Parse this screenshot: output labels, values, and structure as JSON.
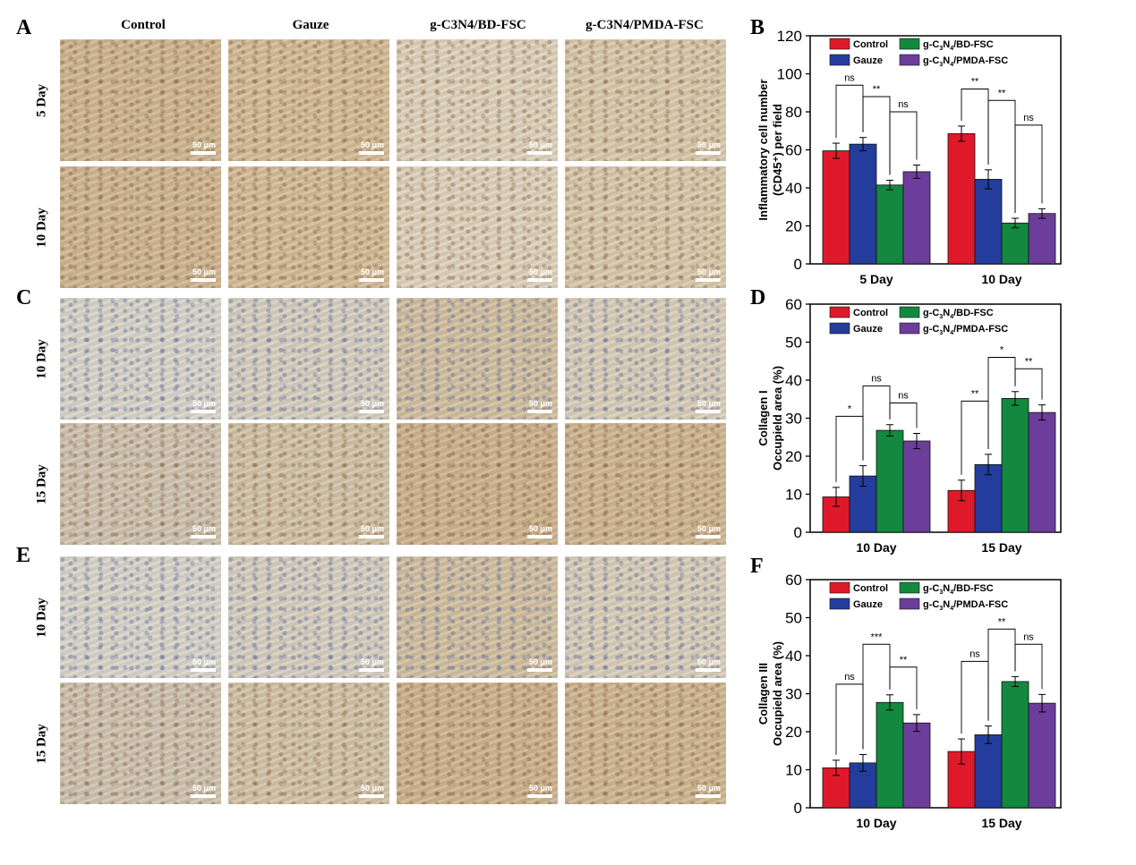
{
  "panel_letters": {
    "A": "A",
    "B": "B",
    "C": "C",
    "D": "D",
    "E": "E",
    "F": "F"
  },
  "columns": [
    "Control",
    "Gauze",
    "g-C3N4/BD-FSC",
    "g-C3N4/PMDA-FSC"
  ],
  "histology_rows": [
    {
      "panel": "A",
      "label": "5 Day",
      "tone": "brown"
    },
    {
      "panel": "A",
      "label": "10 Day",
      "tone": "brown"
    },
    {
      "panel": "C",
      "label": "10 Day",
      "tone": "blue"
    },
    {
      "panel": "C",
      "label": "15 Day",
      "tone": "tan"
    },
    {
      "panel": "E",
      "label": "10 Day",
      "tone": "blue"
    },
    {
      "panel": "E",
      "label": "15 Day",
      "tone": "tan"
    }
  ],
  "tile_colors": {
    "brown": [
      "#cfb692",
      "#d4bc98",
      "#ddd1bb",
      "#d8c8ac"
    ],
    "blue": [
      "#d8d4c8",
      "#d6cfbf",
      "#d2bfa0",
      "#d8cdb8"
    ],
    "tan": [
      "#cfc3b0",
      "#d2c3a8",
      "#cdb38f",
      "#cfb692"
    ]
  },
  "scale_label": "50 μm",
  "series_colors": [
    "#e0192a",
    "#243d9c",
    "#13883f",
    "#6c3d9a"
  ],
  "chart_data": [
    {
      "type": "bar",
      "panel": "B",
      "categories": [
        "5 Day",
        "10 Day"
      ],
      "series": [
        {
          "name": "Control",
          "values": [
            59.5,
            68.5
          ],
          "errors": [
            4,
            4
          ]
        },
        {
          "name": "Gauze",
          "values": [
            63,
            44.5
          ],
          "errors": [
            3.5,
            5
          ]
        },
        {
          "name": "g-C3N4/BD-FSC",
          "values": [
            41.5,
            21.5
          ],
          "errors": [
            2.5,
            2.5
          ]
        },
        {
          "name": "g-C3N4/PMDA-FSC",
          "values": [
            48.5,
            26.5
          ],
          "errors": [
            3.5,
            2.5
          ]
        }
      ],
      "ylabel": [
        "Inflammatory cell number",
        "(CD45⁺) per field"
      ],
      "ylim": [
        0,
        120
      ],
      "yticks": [
        0,
        20,
        40,
        60,
        80,
        100,
        120
      ],
      "legend": "top-left",
      "significance": [
        {
          "group": 0,
          "from": 0,
          "to": 1,
          "label": "ns",
          "bar_value": 94
        },
        {
          "group": 0,
          "from": 1,
          "to": 2,
          "label": "**",
          "bar_value": 88
        },
        {
          "group": 0,
          "from": 2,
          "to": 3,
          "label": "ns",
          "bar_value": 80
        },
        {
          "group": 1,
          "from": 0,
          "to": 1,
          "label": "**",
          "bar_value": 92
        },
        {
          "group": 1,
          "from": 1,
          "to": 2,
          "label": "**",
          "bar_value": 86
        },
        {
          "group": 1,
          "from": 2,
          "to": 3,
          "label": "ns",
          "bar_value": 73
        }
      ]
    },
    {
      "type": "bar",
      "panel": "D",
      "categories": [
        "10 Day",
        "15 Day"
      ],
      "series": [
        {
          "name": "Control",
          "values": [
            9.3,
            11
          ],
          "errors": [
            2.5,
            2.7
          ]
        },
        {
          "name": "Gauze",
          "values": [
            14.8,
            17.8
          ],
          "errors": [
            2.7,
            2.7
          ]
        },
        {
          "name": "g-C3N4/BD-FSC",
          "values": [
            26.8,
            35.2
          ],
          "errors": [
            1.5,
            1.8
          ]
        },
        {
          "name": "g-C3N4/PMDA-FSC",
          "values": [
            24,
            31.5
          ],
          "errors": [
            2,
            2
          ]
        }
      ],
      "ylabel": [
        "Collagen I",
        "Occupield area (%)"
      ],
      "ylim": [
        0,
        60
      ],
      "yticks": [
        0,
        10,
        20,
        30,
        40,
        50,
        60
      ],
      "legend": "top-left",
      "significance": [
        {
          "group": 0,
          "from": 0,
          "to": 1,
          "label": "*",
          "bar_value": 30.5
        },
        {
          "group": 0,
          "from": 1,
          "to": 2,
          "label": "ns",
          "bar_value": 38.5
        },
        {
          "group": 0,
          "from": 2,
          "to": 3,
          "label": "ns",
          "bar_value": 34
        },
        {
          "group": 1,
          "from": 0,
          "to": 1,
          "label": "**",
          "bar_value": 34.5
        },
        {
          "group": 1,
          "from": 1,
          "to": 2,
          "label": "*",
          "bar_value": 46
        },
        {
          "group": 1,
          "from": 2,
          "to": 3,
          "label": "**",
          "bar_value": 43
        }
      ]
    },
    {
      "type": "bar",
      "panel": "F",
      "categories": [
        "10 Day",
        "15 Day"
      ],
      "series": [
        {
          "name": "Control",
          "values": [
            10.5,
            14.8
          ],
          "errors": [
            2,
            3.3
          ]
        },
        {
          "name": "Gauze",
          "values": [
            11.8,
            19.2
          ],
          "errors": [
            2.2,
            2.3
          ]
        },
        {
          "name": "g-C3N4/BD-FSC",
          "values": [
            27.7,
            33.2
          ],
          "errors": [
            2,
            1.3
          ]
        },
        {
          "name": "g-C3N4/PMDA-FSC",
          "values": [
            22.3,
            27.5
          ],
          "errors": [
            2.2,
            2.3
          ]
        }
      ],
      "ylabel": [
        "Collagen III",
        "Occupield area (%)"
      ],
      "ylim": [
        0,
        60
      ],
      "yticks": [
        0,
        10,
        20,
        30,
        40,
        50,
        60
      ],
      "legend": "top-left",
      "significance": [
        {
          "group": 0,
          "from": 0,
          "to": 1,
          "label": "ns",
          "bar_value": 32.5
        },
        {
          "group": 0,
          "from": 1,
          "to": 2,
          "label": "***",
          "bar_value": 43
        },
        {
          "group": 0,
          "from": 2,
          "to": 3,
          "label": "**",
          "bar_value": 37
        },
        {
          "group": 1,
          "from": 0,
          "to": 1,
          "label": "ns",
          "bar_value": 38.5
        },
        {
          "group": 1,
          "from": 1,
          "to": 2,
          "label": "**",
          "bar_value": 47
        },
        {
          "group": 1,
          "from": 2,
          "to": 3,
          "label": "ns",
          "bar_value": 43
        }
      ]
    }
  ]
}
